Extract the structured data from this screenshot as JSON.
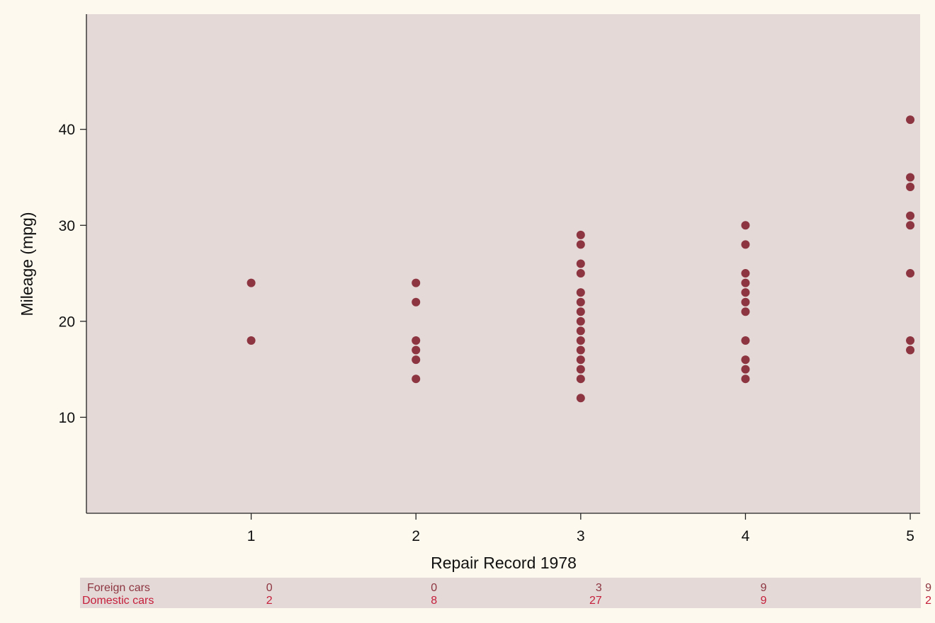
{
  "chart_data": {
    "type": "scatter",
    "title": "",
    "xlabel": "Repair Record 1978",
    "ylabel": "Mileage (mpg)",
    "xlim": [
      0,
      5.06
    ],
    "ylim": [
      0,
      52
    ],
    "xticks": [
      1,
      2,
      3,
      4,
      5
    ],
    "yticks": [
      10,
      20,
      30,
      40
    ],
    "grid": false,
    "colors": {
      "plot_background": "#e4d9d7",
      "page_background": "#fdf9ee",
      "marker": "#8d3540",
      "foreign_row": "#8d3540",
      "domestic_row": "#c51e3a",
      "table_background": "#e4d9d7"
    },
    "series": [
      {
        "points": [
          {
            "x": 1,
            "y": 18
          },
          {
            "x": 1,
            "y": 24
          },
          {
            "x": 2,
            "y": 14
          },
          {
            "x": 2,
            "y": 16
          },
          {
            "x": 2,
            "y": 17
          },
          {
            "x": 2,
            "y": 18
          },
          {
            "x": 2,
            "y": 22
          },
          {
            "x": 2,
            "y": 24
          },
          {
            "x": 3,
            "y": 12
          },
          {
            "x": 3,
            "y": 14
          },
          {
            "x": 3,
            "y": 15
          },
          {
            "x": 3,
            "y": 16
          },
          {
            "x": 3,
            "y": 17
          },
          {
            "x": 3,
            "y": 18
          },
          {
            "x": 3,
            "y": 19
          },
          {
            "x": 3,
            "y": 20
          },
          {
            "x": 3,
            "y": 21
          },
          {
            "x": 3,
            "y": 22
          },
          {
            "x": 3,
            "y": 23
          },
          {
            "x": 3,
            "y": 25
          },
          {
            "x": 3,
            "y": 26
          },
          {
            "x": 3,
            "y": 28
          },
          {
            "x": 3,
            "y": 29
          },
          {
            "x": 4,
            "y": 14
          },
          {
            "x": 4,
            "y": 15
          },
          {
            "x": 4,
            "y": 16
          },
          {
            "x": 4,
            "y": 18
          },
          {
            "x": 4,
            "y": 21
          },
          {
            "x": 4,
            "y": 22
          },
          {
            "x": 4,
            "y": 23
          },
          {
            "x": 4,
            "y": 24
          },
          {
            "x": 4,
            "y": 25
          },
          {
            "x": 4,
            "y": 28
          },
          {
            "x": 4,
            "y": 30
          },
          {
            "x": 5,
            "y": 17
          },
          {
            "x": 5,
            "y": 18
          },
          {
            "x": 5,
            "y": 25
          },
          {
            "x": 5,
            "y": 30
          },
          {
            "x": 5,
            "y": 31
          },
          {
            "x": 5,
            "y": 34
          },
          {
            "x": 5,
            "y": 35
          },
          {
            "x": 5,
            "y": 41
          }
        ]
      }
    ],
    "count_table": {
      "rows": [
        {
          "label": "Foreign cars",
          "values": [
            0,
            0,
            3,
            9,
            9
          ]
        },
        {
          "label": "Domestic cars",
          "values": [
            2,
            8,
            27,
            9,
            2
          ]
        }
      ]
    }
  }
}
